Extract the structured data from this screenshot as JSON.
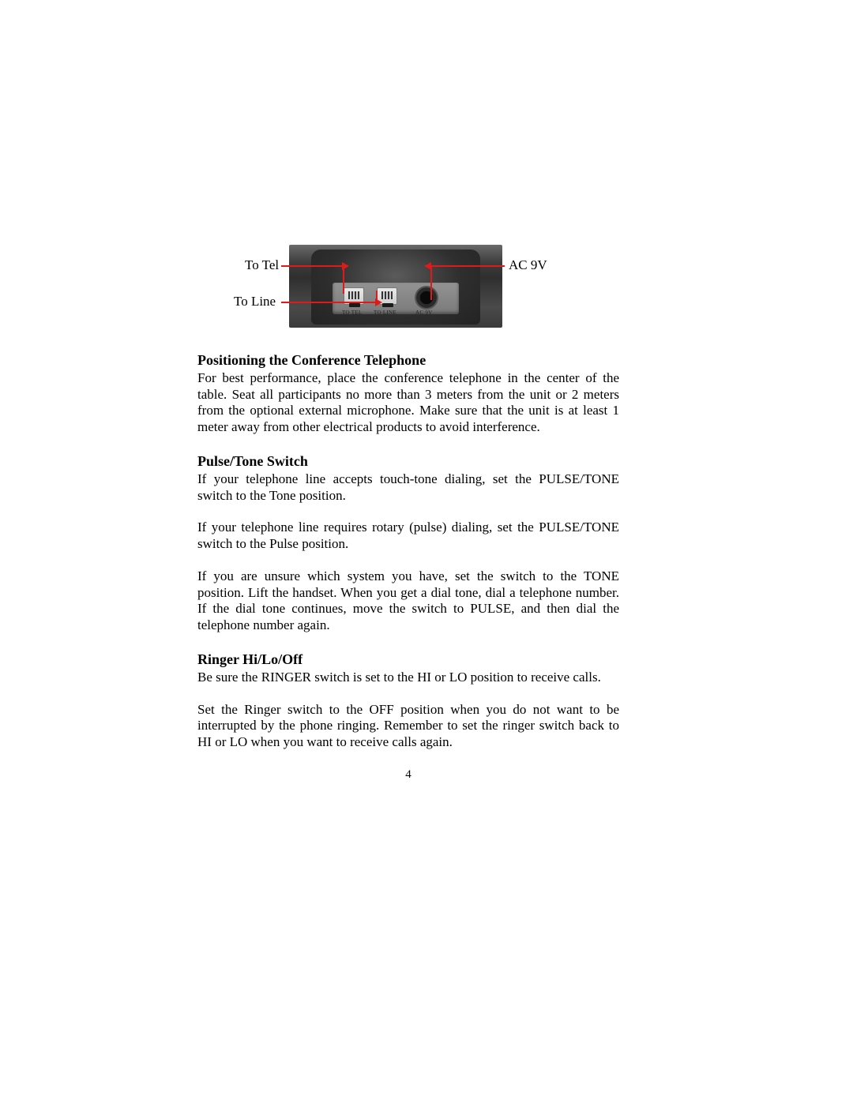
{
  "diagram": {
    "callouts": {
      "to_tel": "To Tel",
      "to_line": "To Line",
      "ac_9v": "AC  9V"
    },
    "panel_labels": {
      "to_tel": "TO TEL",
      "to_line": "TO LINE",
      "ac_9v": "AC 9V"
    },
    "pointer_color": "#e11919",
    "photo_gradient_colors": [
      "#6a6a6a",
      "#3c3c3c",
      "#2f2f2f",
      "#4a4a4a",
      "#3a3a3a"
    ]
  },
  "sections": [
    {
      "heading": "Positioning the Conference Telephone",
      "paragraphs": [
        "For best performance, place the conference telephone in the center of the table. Seat all participants no more than 3 meters from the unit or 2 meters from the optional external microphone.  Make sure that the unit is at least 1 meter away from other electrical products to avoid interference."
      ]
    },
    {
      "heading": "Pulse/Tone Switch",
      "paragraphs": [
        "If your telephone line accepts touch-tone dialing, set the PULSE/TONE switch to the Tone position.",
        "If your telephone line requires  rotary (pulse) dialing, set the PULSE/TONE switch to the Pulse position.",
        "If you are unsure  which system you have, set the switch to the TONE position. Lift the  handset.  When you get a dial tone, dial a telephone number.   If the dial tone continues, move the switch to PULSE, and then dial the telephone number again."
      ]
    },
    {
      "heading": "Ringer Hi/Lo/Off",
      "paragraphs": [
        "Be sure the  RINGER  switch is set to the HI or LO  position to receive calls.",
        "Set the Ringer switch to the OFF position when you do not want to be interrupted by the phone ringing.  Remember  to set the ringer switch back to HI or LO when you want to receive calls again."
      ]
    }
  ],
  "page_number": "4",
  "typography": {
    "body_font": "Times New Roman",
    "body_size_pt": 12,
    "heading_size_pt": 13,
    "heading_weight": "bold",
    "text_color": "#000000",
    "background_color": "#ffffff"
  }
}
